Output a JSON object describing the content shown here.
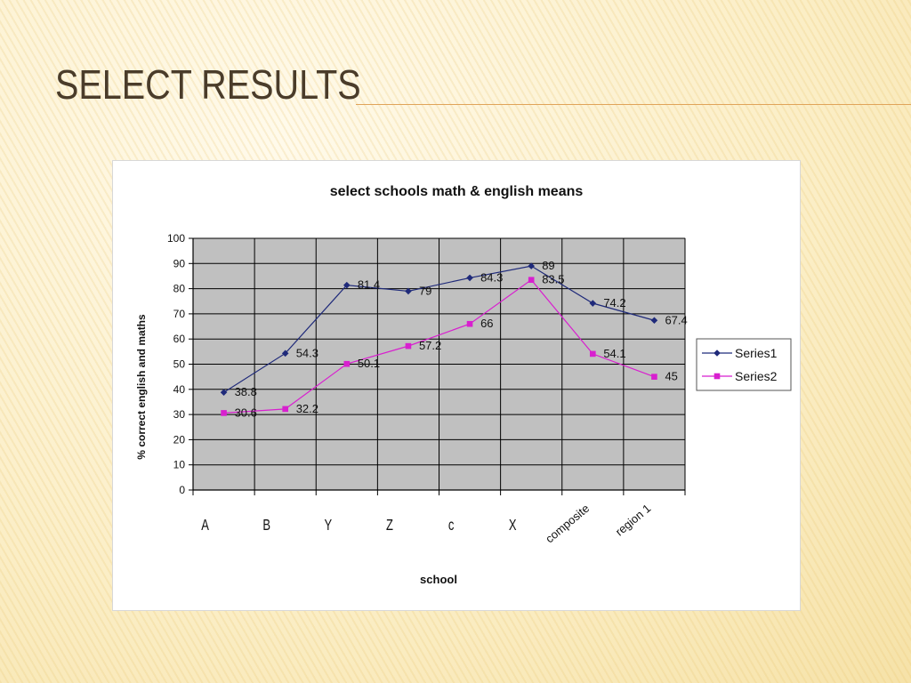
{
  "slide": {
    "title": "SELECT RESULTS"
  },
  "chart_data": {
    "type": "line",
    "title": "select schools math & english means",
    "xlabel": "school",
    "ylabel": "% correct english and maths",
    "categories": [
      "A",
      "B",
      "Y",
      "Z",
      "c",
      "X",
      "composite",
      "region 1"
    ],
    "ylim": [
      0,
      100
    ],
    "yticks": [
      "0",
      "10",
      "20",
      "30",
      "40",
      "50",
      "60",
      "70",
      "80",
      "90",
      "100"
    ],
    "grid": true,
    "legend_position": "right",
    "series": [
      {
        "name": "Series1",
        "color": "#1f2a7a",
        "marker": "diamond",
        "values": [
          38.8,
          54.3,
          81.4,
          79,
          84.3,
          89,
          74.2,
          67.4
        ],
        "labels": [
          "38.8",
          "54.3",
          "81.4",
          "79",
          "84.3",
          "89",
          "74.2",
          "67.4"
        ]
      },
      {
        "name": "Series2",
        "color": "#d81fcf",
        "marker": "square",
        "values": [
          30.6,
          32.2,
          50.1,
          57.2,
          66,
          83.5,
          54.1,
          45
        ],
        "labels": [
          "30.6",
          "32.2",
          "50.1",
          "57.2",
          "66",
          "83.5",
          "54.1",
          "45"
        ]
      }
    ]
  }
}
